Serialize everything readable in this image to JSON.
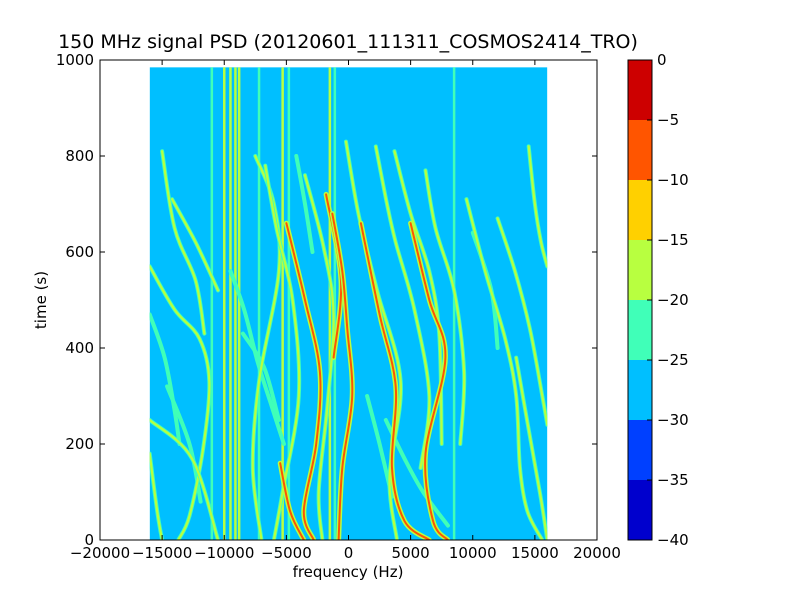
{
  "chart_data": {
    "type": "heatmap",
    "title": "150 MHz signal PSD (20120601_111311_COSMOS2414_TRO)",
    "xlabel": "frequency (Hz)",
    "ylabel": "time (s)",
    "xlim": [
      -20000,
      20000
    ],
    "ylim": [
      0,
      1000
    ],
    "xticks": [
      -20000,
      -15000,
      -10000,
      -5000,
      0,
      5000,
      10000,
      15000,
      20000
    ],
    "xtick_labels": [
      "−20000",
      "−15000",
      "−10000",
      "−5000",
      "0",
      "5000",
      "10000",
      "15000",
      "20000"
    ],
    "yticks": [
      0,
      200,
      400,
      600,
      800,
      1000
    ],
    "ytick_labels": [
      "0",
      "200",
      "400",
      "600",
      "800",
      "1000"
    ],
    "data_extent": {
      "x": [
        -16000,
        16000
      ],
      "y": [
        0,
        985
      ]
    },
    "background_level": -27,
    "colorbar": {
      "levels": [
        -40,
        -35,
        -30,
        -25,
        -20,
        -15,
        -10,
        -5,
        0
      ],
      "tick_labels": [
        "−40",
        "−35",
        "−30",
        "−25",
        "−20",
        "−15",
        "−10",
        "−5",
        "0"
      ],
      "colors": [
        "#0000cd",
        "#0040ff",
        "#00bfff",
        "#40ffb8",
        "#b8ff40",
        "#ffd000",
        "#ff5500",
        "#cd0000"
      ]
    },
    "vertical_lines": [
      {
        "x": -11000,
        "level": -22
      },
      {
        "x": -10000,
        "level": -17
      },
      {
        "x": -9500,
        "level": -17
      },
      {
        "x": -9100,
        "level": -17
      },
      {
        "x": -8800,
        "level": -17
      },
      {
        "x": -7200,
        "level": -22
      },
      {
        "x": -5300,
        "level": -17
      },
      {
        "x": -4800,
        "level": -22
      },
      {
        "x": -1500,
        "level": -17
      },
      {
        "x": -1100,
        "level": -22
      },
      {
        "x": 8500,
        "level": -22
      }
    ],
    "series": [
      {
        "level": -8,
        "points": [
          [
            -5000,
            660
          ],
          [
            -3500,
            500
          ],
          [
            -2300,
            350
          ],
          [
            -2600,
            200
          ],
          [
            -3600,
            60
          ],
          [
            -2800,
            0
          ]
        ]
      },
      {
        "level": -8,
        "points": [
          [
            -1300,
            680
          ],
          [
            -500,
            560
          ],
          [
            -100,
            440
          ],
          [
            300,
            300
          ],
          [
            -500,
            150
          ],
          [
            -800,
            0
          ]
        ]
      },
      {
        "level": -8,
        "points": [
          [
            1000,
            660
          ],
          [
            2500,
            470
          ],
          [
            3800,
            320
          ],
          [
            3500,
            150
          ],
          [
            4500,
            40
          ],
          [
            6500,
            0
          ]
        ]
      },
      {
        "level": -8,
        "points": [
          [
            5000,
            660
          ],
          [
            6500,
            500
          ],
          [
            7800,
            380
          ],
          [
            6200,
            180
          ],
          [
            6800,
            40
          ],
          [
            8000,
            0
          ]
        ]
      },
      {
        "level": -8,
        "points": [
          [
            -5500,
            160
          ],
          [
            -4700,
            60
          ],
          [
            -3600,
            0
          ]
        ]
      },
      {
        "level": -10,
        "points": [
          [
            -1800,
            720
          ],
          [
            -600,
            540
          ],
          [
            -1200,
            380
          ]
        ]
      },
      {
        "level": -17,
        "points": [
          [
            -16000,
            570
          ],
          [
            -14000,
            480
          ],
          [
            -12000,
            420
          ],
          [
            -11200,
            330
          ],
          [
            -11700,
            190
          ],
          [
            -12800,
            50
          ],
          [
            -13700,
            0
          ]
        ]
      },
      {
        "level": -17,
        "points": [
          [
            -16000,
            180
          ],
          [
            -15400,
            60
          ],
          [
            -15000,
            0
          ]
        ]
      },
      {
        "level": -17,
        "points": [
          [
            -16000,
            250
          ],
          [
            -12600,
            170
          ],
          [
            -10500,
            0
          ]
        ]
      },
      {
        "level": -17,
        "points": [
          [
            -15000,
            810
          ],
          [
            -14000,
            650
          ],
          [
            -12300,
            540
          ],
          [
            -11600,
            430
          ]
        ]
      },
      {
        "level": -17,
        "points": [
          [
            -14200,
            710
          ],
          [
            -12300,
            620
          ],
          [
            -10500,
            520
          ]
        ]
      },
      {
        "level": -17,
        "points": [
          [
            -7500,
            800
          ],
          [
            -6000,
            700
          ],
          [
            -5600,
            560
          ],
          [
            -7200,
            330
          ],
          [
            -7700,
            150
          ],
          [
            -7000,
            0
          ]
        ]
      },
      {
        "level": -17,
        "points": [
          [
            -6700,
            780
          ],
          [
            -5800,
            650
          ],
          [
            -4500,
            500
          ],
          [
            -4000,
            300
          ],
          [
            -5300,
            100
          ],
          [
            -6000,
            0
          ]
        ]
      },
      {
        "level": -17,
        "points": [
          [
            -3500,
            760
          ],
          [
            -2000,
            610
          ],
          [
            -1200,
            470
          ],
          [
            -1700,
            280
          ],
          [
            -2400,
            100
          ],
          [
            -2100,
            0
          ]
        ]
      },
      {
        "level": -17,
        "points": [
          [
            -200,
            830
          ],
          [
            800,
            680
          ],
          [
            2300,
            520
          ],
          [
            4200,
            330
          ],
          [
            3300,
            130
          ],
          [
            3900,
            0
          ]
        ]
      },
      {
        "level": -17,
        "points": [
          [
            2200,
            820
          ],
          [
            3100,
            700
          ],
          [
            3800,
            620
          ],
          [
            5300,
            480
          ],
          [
            6500,
            300
          ],
          [
            5800,
            150
          ]
        ]
      },
      {
        "level": -17,
        "points": [
          [
            3700,
            810
          ],
          [
            5000,
            680
          ],
          [
            6500,
            560
          ],
          [
            7300,
            430
          ],
          [
            7500,
            200
          ]
        ]
      },
      {
        "level": -17,
        "points": [
          [
            6200,
            770
          ],
          [
            7000,
            650
          ],
          [
            8500,
            520
          ],
          [
            9300,
            350
          ],
          [
            9000,
            200
          ]
        ]
      },
      {
        "level": -17,
        "points": [
          [
            9500,
            710
          ],
          [
            11000,
            560
          ],
          [
            12600,
            420
          ],
          [
            13500,
            300
          ],
          [
            13800,
            150
          ],
          [
            14400,
            60
          ],
          [
            15600,
            0
          ]
        ]
      },
      {
        "level": -17,
        "points": [
          [
            12000,
            670
          ],
          [
            13400,
            560
          ],
          [
            14600,
            440
          ],
          [
            15600,
            300
          ],
          [
            16000,
            240
          ]
        ]
      },
      {
        "level": -17,
        "points": [
          [
            14500,
            820
          ],
          [
            15000,
            700
          ],
          [
            15500,
            620
          ],
          [
            16000,
            570
          ]
        ]
      },
      {
        "level": -17,
        "points": [
          [
            13500,
            380
          ],
          [
            14500,
            230
          ],
          [
            15400,
            100
          ],
          [
            16000,
            0
          ]
        ]
      },
      {
        "level": -22,
        "points": [
          [
            -16000,
            470
          ],
          [
            -14800,
            380
          ],
          [
            -14000,
            270
          ],
          [
            -13600,
            200
          ]
        ]
      },
      {
        "level": -22,
        "points": [
          [
            -8500,
            430
          ],
          [
            -6800,
            360
          ],
          [
            -5600,
            250
          ]
        ]
      },
      {
        "level": -22,
        "points": [
          [
            -9500,
            560
          ],
          [
            -8400,
            480
          ],
          [
            -7300,
            370
          ],
          [
            -6200,
            280
          ],
          [
            -5200,
            200
          ]
        ]
      },
      {
        "level": -22,
        "points": [
          [
            3000,
            250
          ],
          [
            4500,
            170
          ],
          [
            6000,
            100
          ],
          [
            8000,
            30
          ]
        ]
      },
      {
        "level": -22,
        "points": [
          [
            10000,
            640
          ],
          [
            11500,
            520
          ],
          [
            12000,
            400
          ]
        ]
      },
      {
        "level": -22,
        "points": [
          [
            -14600,
            320
          ],
          [
            -12800,
            200
          ],
          [
            -11900,
            80
          ]
        ]
      },
      {
        "level": -22,
        "points": [
          [
            -4200,
            800
          ],
          [
            -3500,
            700
          ],
          [
            -2900,
            600
          ]
        ]
      },
      {
        "level": -22,
        "points": [
          [
            1500,
            300
          ],
          [
            2500,
            200
          ],
          [
            3500,
            90
          ]
        ]
      }
    ]
  }
}
